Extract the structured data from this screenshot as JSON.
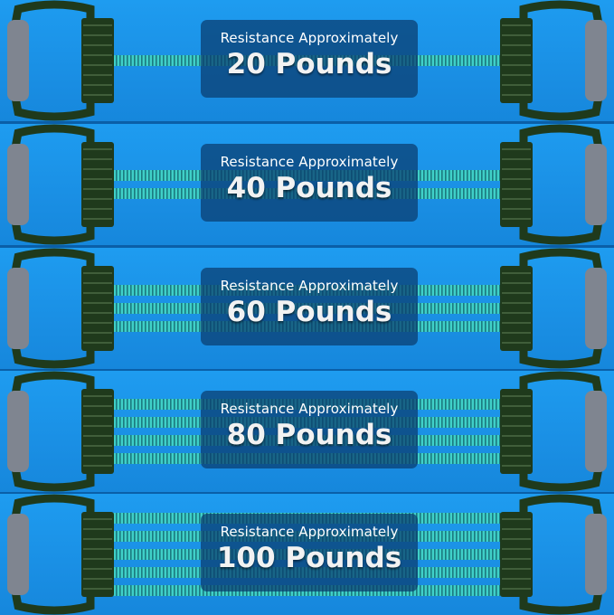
{
  "colors": {
    "background": "#1a8fe4",
    "cord": "#3fd0c8",
    "handle": "#1f3a1c",
    "grip": "#7f8590",
    "label_bg": "#0a3c6e"
  },
  "panels": [
    {
      "caption": "Resistance Approximately",
      "weight": "20 Pounds",
      "cords": 1
    },
    {
      "caption": "Resistance Approximately",
      "weight": "40 Pounds",
      "cords": 2
    },
    {
      "caption": "Resistance Approximately",
      "weight": "60 Pounds",
      "cords": 3
    },
    {
      "caption": "Resistance Approximately",
      "weight": "80 Pounds",
      "cords": 4
    },
    {
      "caption": "Resistance Approximately",
      "weight": "100 Pounds",
      "cords": 5
    }
  ]
}
